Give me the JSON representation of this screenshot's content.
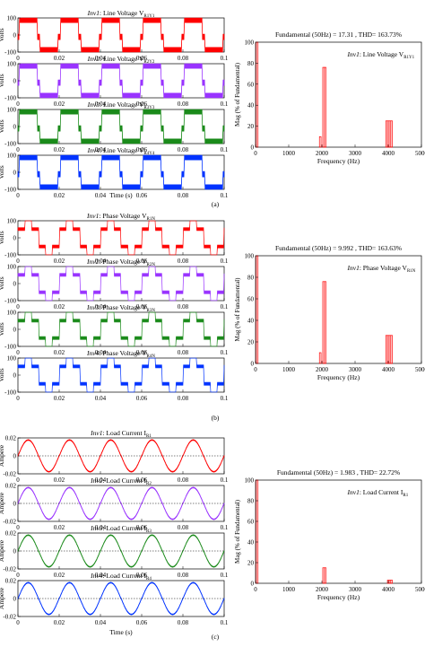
{
  "chart_data": [
    {
      "panel": "(a)",
      "type": "line",
      "subplots": [
        {
          "label_prefix": "Inv1",
          "label_text": ": Line Voltage V",
          "label_sub": "R1Y1",
          "color": "#ff0000",
          "waveform": "line_voltage",
          "amplitude": 100,
          "ylim": [
            -100,
            100
          ],
          "yticks": [
            -100,
            0,
            100
          ],
          "xlim": [
            0,
            0.1
          ]
        },
        {
          "label_prefix": "Inv2",
          "label_text": ": Line Voltage V",
          "label_sub": "R2Y2",
          "color": "#9933ff",
          "waveform": "line_voltage",
          "amplitude": 100,
          "ylim": [
            -100,
            100
          ],
          "yticks": [
            -100,
            0,
            100
          ],
          "xlim": [
            0,
            0.1
          ]
        },
        {
          "label_prefix": "Inv3",
          "label_text": ": Line Voltage V",
          "label_sub": "R3Y3",
          "color": "#1a8a1a",
          "waveform": "line_voltage",
          "amplitude": 100,
          "ylim": [
            -100,
            100
          ],
          "yticks": [
            -100,
            0,
            100
          ],
          "xlim": [
            0,
            0.1
          ]
        },
        {
          "label_prefix": "Inv4",
          "label_text": ": Line Voltage V",
          "label_sub": "R4Y4",
          "color": "#0033ff",
          "waveform": "line_voltage",
          "amplitude": 100,
          "ylim": [
            -100,
            100
          ],
          "yticks": [
            -100,
            0,
            100
          ],
          "xlim": [
            0,
            0.1
          ]
        }
      ],
      "ylabel": "Volts",
      "xlabel": "Time (s)",
      "xticks": [
        "0",
        "0.02",
        "0.04",
        "0.06",
        "0.08",
        "0.1"
      ],
      "spectrum": {
        "type": "bar",
        "title": "Fundamental (50Hz) = 17.31 , THD= 163.73%",
        "legend_prefix": "Inv1",
        "legend_text": ": Line Voltage V",
        "legend_sub": "R1Y1",
        "xlabel": "Frequency (Hz)",
        "ylabel": "Mag (% of Fundamental)",
        "xlim": [
          0,
          5000
        ],
        "ylim": [
          0,
          100
        ],
        "xticks": [
          "0",
          "1000",
          "2000",
          "3000",
          "4000",
          "5000"
        ],
        "yticks": [
          "0",
          "20",
          "40",
          "60",
          "80",
          "100"
        ],
        "harmonics": [
          {
            "f": 50,
            "v": 100
          },
          {
            "f": 1950,
            "v": 10
          },
          {
            "f": 2050,
            "v": 76
          },
          {
            "f": 2100,
            "v": 76
          },
          {
            "f": 3950,
            "v": 25
          },
          {
            "f": 4000,
            "v": 25
          },
          {
            "f": 4050,
            "v": 25
          },
          {
            "f": 4100,
            "v": 25
          }
        ]
      }
    },
    {
      "panel": "(b)",
      "type": "line",
      "subplots": [
        {
          "label_prefix": "Inv1",
          "label_text": ": Phase Voltage V",
          "label_sub": "R1N",
          "color": "#ff0000",
          "waveform": "phase_voltage",
          "amplitude": 100,
          "ylim": [
            -100,
            100
          ],
          "yticks": [
            -100,
            0,
            100
          ],
          "xlim": [
            0,
            0.1
          ]
        },
        {
          "label_prefix": "Inv2",
          "label_text": ": Phase Voltage V",
          "label_sub": "R2N",
          "color": "#9933ff",
          "waveform": "phase_voltage",
          "amplitude": 100,
          "ylim": [
            -100,
            100
          ],
          "yticks": [
            -100,
            0,
            100
          ],
          "xlim": [
            0,
            0.1
          ]
        },
        {
          "label_prefix": "Inv3",
          "label_text": ": Phase Voltage V",
          "label_sub": "R3N",
          "color": "#1a8a1a",
          "waveform": "phase_voltage",
          "amplitude": 100,
          "ylim": [
            -100,
            100
          ],
          "yticks": [
            -100,
            0,
            100
          ],
          "xlim": [
            0,
            0.1
          ]
        },
        {
          "label_prefix": "Inv4",
          "label_text": ": Phase Voltage V",
          "label_sub": "R4N",
          "color": "#0033ff",
          "waveform": "phase_voltage",
          "amplitude": 100,
          "ylim": [
            -100,
            100
          ],
          "yticks": [
            -100,
            0,
            100
          ],
          "xlim": [
            0,
            0.1
          ]
        }
      ],
      "ylabel": "Volts",
      "xlabel": "",
      "xticks": [
        "0",
        "0.02",
        "0.04",
        "0.06",
        "0.08",
        "0.1"
      ],
      "spectrum": {
        "type": "bar",
        "title": "Fundamental (50Hz) = 9.992 , THD= 163.63%",
        "legend_prefix": "Inv1",
        "legend_text": ": Phase Voltage V",
        "legend_sub": "R1N",
        "xlabel": "Frequency (Hz)",
        "ylabel": "Mag (% of Fundamental)",
        "xlim": [
          0,
          5000
        ],
        "ylim": [
          0,
          100
        ],
        "xticks": [
          "0",
          "1000",
          "2000",
          "3000",
          "4000",
          "5000"
        ],
        "yticks": [
          "0",
          "20",
          "40",
          "60",
          "80",
          "100"
        ],
        "harmonics": [
          {
            "f": 50,
            "v": 100
          },
          {
            "f": 1950,
            "v": 10
          },
          {
            "f": 2050,
            "v": 76
          },
          {
            "f": 2100,
            "v": 76
          },
          {
            "f": 3950,
            "v": 26
          },
          {
            "f": 4000,
            "v": 26
          },
          {
            "f": 4050,
            "v": 26
          },
          {
            "f": 4100,
            "v": 26
          }
        ]
      }
    },
    {
      "panel": "(c)",
      "type": "line",
      "subplots": [
        {
          "label_prefix": "Inv1",
          "label_text": ": Load Current I",
          "label_sub": "R1",
          "color": "#ff0000",
          "waveform": "current",
          "amplitude": 0.02,
          "ylim": [
            -0.02,
            0.02
          ],
          "yticks": [
            -0.02,
            0,
            0.02
          ],
          "xlim": [
            0,
            0.1
          ]
        },
        {
          "label_prefix": "Inv2",
          "label_text": ": Load Current I",
          "label_sub": "R2",
          "color": "#9933ff",
          "waveform": "current",
          "amplitude": 0.02,
          "ylim": [
            -0.02,
            0.02
          ],
          "yticks": [
            -0.02,
            0,
            0.02
          ],
          "xlim": [
            0,
            0.1
          ]
        },
        {
          "label_prefix": "Inv3",
          "label_text": ": Load Current I",
          "label_sub": "R3",
          "color": "#1a8a1a",
          "waveform": "current",
          "amplitude": 0.02,
          "ylim": [
            -0.02,
            0.02
          ],
          "yticks": [
            -0.02,
            0,
            0.02
          ],
          "xlim": [
            0,
            0.1
          ]
        },
        {
          "label_prefix": "Inv4",
          "label_text": ": Load Current I",
          "label_sub": "R4",
          "color": "#0033ff",
          "waveform": "current",
          "amplitude": 0.02,
          "ylim": [
            -0.02,
            0.02
          ],
          "yticks": [
            -0.02,
            0,
            0.02
          ],
          "xlim": [
            0,
            0.1
          ]
        }
      ],
      "ylabel": "Ampere",
      "xlabel": "Time (s)",
      "xticks": [
        "0",
        "0.02",
        "0.04",
        "0.06",
        "0.08",
        "0.1"
      ],
      "spectrum": {
        "type": "bar",
        "title": "Fundamental (50Hz) = 1.983 , THD= 22.72%",
        "legend_prefix": "Inv1",
        "legend_text": ": Load Current I",
        "legend_sub": "R1",
        "xlabel": "Frequency (Hz)",
        "ylabel": "Mag (% of Fundamental)",
        "xlim": [
          0,
          5000
        ],
        "ylim": [
          0,
          100
        ],
        "xticks": [
          "0",
          "1000",
          "2000",
          "3000",
          "4000",
          "5000"
        ],
        "yticks": [
          "0",
          "20",
          "40",
          "60",
          "80",
          "100"
        ],
        "harmonics": [
          {
            "f": 50,
            "v": 100
          },
          {
            "f": 2050,
            "v": 15
          },
          {
            "f": 2100,
            "v": 15
          },
          {
            "f": 4000,
            "v": 3
          },
          {
            "f": 4050,
            "v": 3
          },
          {
            "f": 4100,
            "v": 3
          }
        ]
      }
    }
  ]
}
